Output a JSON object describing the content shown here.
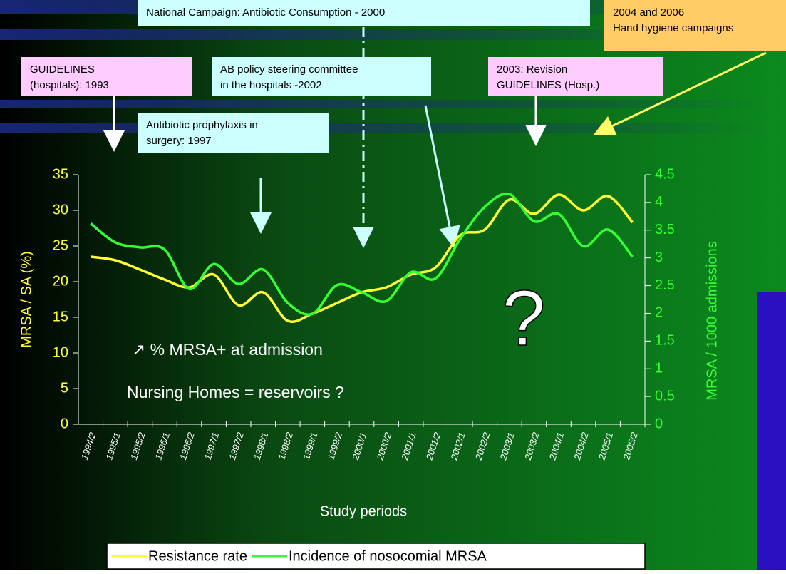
{
  "chart_data": {
    "type": "line",
    "x_label": "Study periods",
    "y_label": "MRSA / SA (%)",
    "y2_label": "MRSA / 1000 admissions",
    "categories": [
      "1994/2",
      "1995/1",
      "1995/2",
      "1996/1",
      "1996/2",
      "1997/1",
      "1997/2",
      "1998/1",
      "1998/2",
      "1999/1",
      "1999/2",
      "2000/1",
      "2000/2",
      "2001/1",
      "2001/2",
      "2002/1",
      "2002/2",
      "2003/1",
      "2003/2",
      "2004/1",
      "2004/2",
      "2005/1",
      "2005/2"
    ],
    "series": [
      {
        "name": "Resistance rate",
        "color": "#ffff33",
        "axis": "y",
        "values": [
          23.5,
          23,
          21.7,
          20.3,
          19.2,
          21,
          16.7,
          18.5,
          14.5,
          15.5,
          17,
          18.5,
          19.2,
          21,
          22,
          26.5,
          27.3,
          31.5,
          29.5,
          32.2,
          30,
          32,
          28.3
        ]
      },
      {
        "name": "Incidence of nosocomial MRSA",
        "color": "#33ff33",
        "axis": "y2",
        "values": [
          3.62,
          3.28,
          3.19,
          3.15,
          2.44,
          2.89,
          2.53,
          2.79,
          2.19,
          1.99,
          2.51,
          2.38,
          2.22,
          2.74,
          2.63,
          3.34,
          3.92,
          4.15,
          3.66,
          3.79,
          3.21,
          3.51,
          3.02
        ]
      }
    ],
    "ylim": [
      0,
      35
    ],
    "yticks": [
      0,
      5,
      10,
      15,
      20,
      25,
      30,
      35
    ],
    "y2lim": [
      0,
      4.5
    ],
    "y2ticks": [
      0,
      0.5,
      1,
      1.5,
      2,
      2.5,
      3,
      3.5,
      4,
      4.5
    ],
    "legend": "bottom",
    "annotations": [
      {
        "lines": [
          "National Campaign: Antibiotic Consumption - 2000"
        ]
      },
      {
        "lines": [
          "2004 and 2006",
          "Hand hygiene campaigns"
        ]
      },
      {
        "lines": [
          "GUIDELINES",
          "(hospitals):  1993"
        ]
      },
      {
        "lines": [
          "AB policy steering committee",
          "in the hospitals -2002"
        ]
      },
      {
        "lines": [
          "2003: Revision",
          "GUIDELINES (Hosp.)"
        ]
      },
      {
        "lines": [
          "Antibiotic prophylaxis in",
          "surgery: 1997"
        ]
      }
    ],
    "notes": [
      "↗ % MRSA+ at admission",
      "Nursing Homes = reservoirs ?",
      "?"
    ]
  }
}
